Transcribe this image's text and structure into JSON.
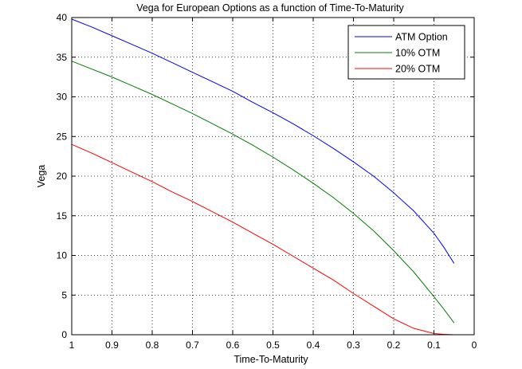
{
  "chart_data": {
    "type": "line",
    "title": "Vega for European Options as a function of Time-To-Maturity",
    "xlabel": "Time-To-Maturity",
    "ylabel": "Vega",
    "xlim": [
      1,
      0
    ],
    "ylim": [
      0,
      40
    ],
    "x_reversed": true,
    "grid": true,
    "legend_position": "top-right",
    "x_ticks": [
      1,
      0.9,
      0.8,
      0.7,
      0.6,
      0.5,
      0.4,
      0.3,
      0.2,
      0.1,
      0
    ],
    "x_tick_labels": [
      "1",
      "0.9",
      "0.8",
      "0.7",
      "0.6",
      "0.5",
      "0.4",
      "0.3",
      "0.2",
      "0.1",
      "0"
    ],
    "y_ticks": [
      0,
      5,
      10,
      15,
      20,
      25,
      30,
      35,
      40
    ],
    "y_tick_labels": [
      "0",
      "5",
      "10",
      "15",
      "20",
      "25",
      "30",
      "35",
      "40"
    ],
    "x": [
      1.0,
      0.95,
      0.9,
      0.85,
      0.8,
      0.75,
      0.7,
      0.65,
      0.6,
      0.55,
      0.5,
      0.45,
      0.4,
      0.35,
      0.3,
      0.25,
      0.2,
      0.15,
      0.1,
      0.075,
      0.05
    ],
    "series": [
      {
        "name": "ATM Option",
        "color": "#0000ff",
        "values": [
          39.8,
          38.8,
          37.7,
          36.6,
          35.5,
          34.3,
          33.1,
          31.9,
          30.7,
          29.3,
          28.0,
          26.6,
          25.1,
          23.5,
          21.8,
          20.0,
          17.9,
          15.6,
          12.8,
          11.0,
          9.0
        ]
      },
      {
        "name": "10% OTM",
        "color": "#008000",
        "values": [
          34.5,
          33.5,
          32.5,
          31.4,
          30.3,
          29.1,
          27.9,
          26.6,
          25.3,
          23.9,
          22.4,
          20.8,
          19.1,
          17.3,
          15.3,
          13.1,
          10.6,
          7.9,
          4.8,
          3.2,
          1.5
        ]
      },
      {
        "name": "20% OTM",
        "color": "#ff0000",
        "values": [
          24.0,
          22.9,
          21.7,
          20.5,
          19.3,
          18.0,
          16.8,
          15.5,
          14.2,
          12.8,
          11.4,
          9.9,
          8.4,
          6.9,
          5.2,
          3.6,
          2.0,
          0.8,
          0.15,
          0.05,
          0.0
        ]
      }
    ]
  }
}
